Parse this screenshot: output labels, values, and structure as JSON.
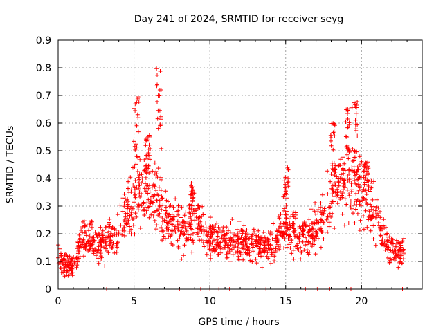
{
  "chart_data": {
    "type": "scatter",
    "title": "Day 241 of 2024, SRMTID for receiver seyg",
    "xlabel": "GPS time / hours",
    "ylabel": "SRMTID / TECUs",
    "xlim": [
      0,
      24
    ],
    "ylim": [
      0,
      0.9
    ],
    "xticks": [
      "0",
      "5",
      "10",
      "15",
      "20"
    ],
    "yticks": [
      "0",
      "0.1",
      "0.2",
      "0.3",
      "0.4",
      "0.5",
      "0.6",
      "0.7",
      "0.8",
      "0.9"
    ],
    "grid": true,
    "marker": "+",
    "color": "#ff0000",
    "profile": [
      [
        0.0,
        0.12
      ],
      [
        0.5,
        0.09
      ],
      [
        1.0,
        0.08
      ],
      [
        1.5,
        0.17
      ],
      [
        2.0,
        0.19
      ],
      [
        2.5,
        0.16
      ],
      [
        3.0,
        0.16
      ],
      [
        3.5,
        0.19
      ],
      [
        4.0,
        0.21
      ],
      [
        4.5,
        0.28
      ],
      [
        5.0,
        0.33
      ],
      [
        5.5,
        0.36
      ],
      [
        6.0,
        0.37
      ],
      [
        6.5,
        0.33
      ],
      [
        7.0,
        0.27
      ],
      [
        7.5,
        0.24
      ],
      [
        8.0,
        0.22
      ],
      [
        8.5,
        0.22
      ],
      [
        9.0,
        0.25
      ],
      [
        9.5,
        0.23
      ],
      [
        10.0,
        0.19
      ],
      [
        10.5,
        0.18
      ],
      [
        11.0,
        0.18
      ],
      [
        11.5,
        0.17
      ],
      [
        12.0,
        0.17
      ],
      [
        12.5,
        0.17
      ],
      [
        13.0,
        0.16
      ],
      [
        13.5,
        0.15
      ],
      [
        14.0,
        0.16
      ],
      [
        14.5,
        0.18
      ],
      [
        15.0,
        0.22
      ],
      [
        15.5,
        0.22
      ],
      [
        16.0,
        0.2
      ],
      [
        16.5,
        0.18
      ],
      [
        17.0,
        0.22
      ],
      [
        17.5,
        0.27
      ],
      [
        18.0,
        0.34
      ],
      [
        18.5,
        0.37
      ],
      [
        19.0,
        0.39
      ],
      [
        19.5,
        0.39
      ],
      [
        20.0,
        0.36
      ],
      [
        20.5,
        0.32
      ],
      [
        21.0,
        0.25
      ],
      [
        21.5,
        0.18
      ],
      [
        22.0,
        0.14
      ],
      [
        22.5,
        0.14
      ],
      [
        22.8,
        0.13
      ]
    ],
    "spikes": [
      {
        "x": 5.15,
        "y": 0.7
      },
      {
        "x": 5.9,
        "y": 0.56
      },
      {
        "x": 6.65,
        "y": 0.81
      },
      {
        "x": 8.8,
        "y": 0.39
      },
      {
        "x": 15.0,
        "y": 0.44
      },
      {
        "x": 18.1,
        "y": 0.6
      },
      {
        "x": 19.1,
        "y": 0.66
      },
      {
        "x": 19.55,
        "y": 0.71
      },
      {
        "x": 20.3,
        "y": 0.46
      }
    ],
    "zero_points_x": [
      3.2,
      8.0,
      9.4,
      10.0,
      10.6,
      11.3,
      13.7,
      16.3,
      17.1,
      17.9,
      19.3,
      22.7
    ]
  }
}
